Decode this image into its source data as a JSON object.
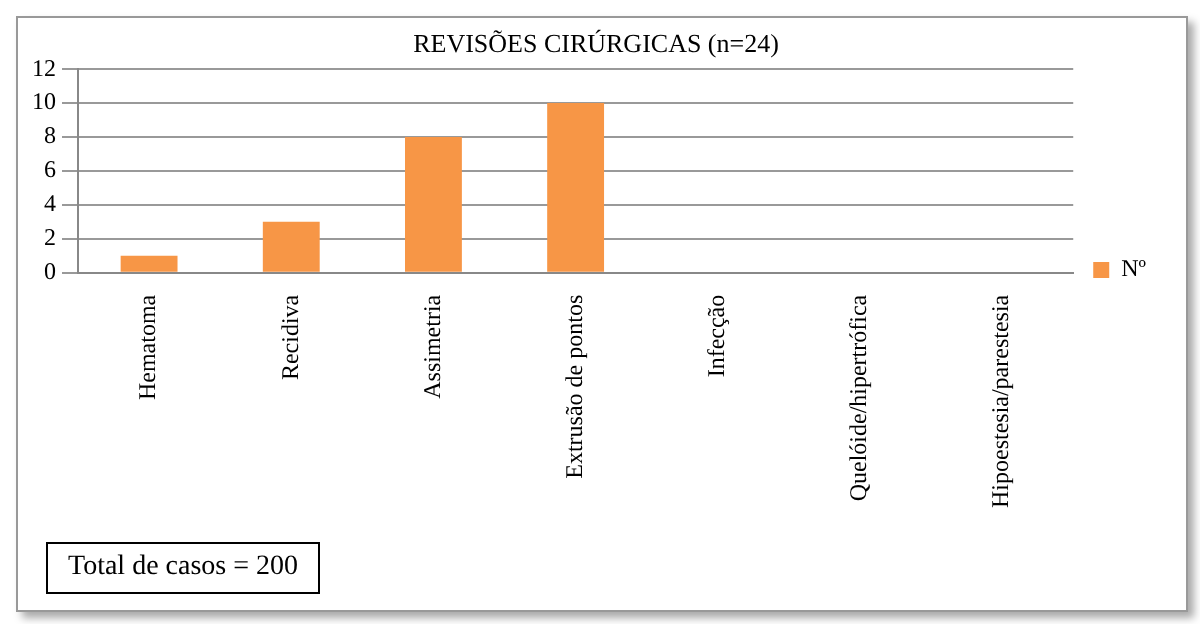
{
  "chart_data": {
    "type": "bar",
    "title": "REVISÕES CIRÚRGICAS (n=24)",
    "categories": [
      "Hematoma",
      "Recidiva",
      "Assimetria",
      "Extrusão de pontos",
      "Infecção",
      "Quelóide/hipertrófica",
      "Hipoestesia/parestesia"
    ],
    "series": [
      {
        "name": "Nº",
        "color": "#f79646",
        "values": [
          1,
          3,
          8,
          10,
          0,
          0,
          0
        ]
      }
    ],
    "ylim": [
      0,
      12
    ],
    "yticks": [
      0,
      2,
      4,
      6,
      8,
      10,
      12
    ],
    "grid": "y",
    "legend": "right",
    "annotations": [
      "Total de casos = 200"
    ]
  }
}
